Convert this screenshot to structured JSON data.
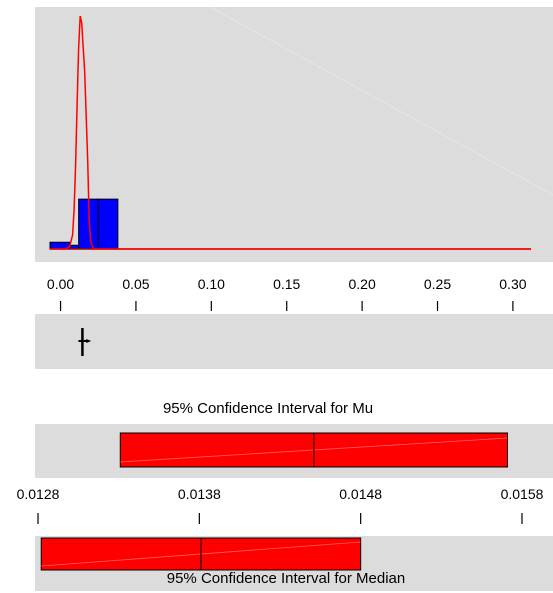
{
  "colors": {
    "panel_bg": "#dcdcdc",
    "histogram_fill": "#0000ff",
    "density_line": "#ff0000",
    "interval_fill": "#ff0000",
    "outline": "#000000"
  },
  "chart_data": [
    {
      "type": "bar",
      "subtype": "histogram with density curve",
      "x_ticks": [
        "0.00",
        "0.05",
        "0.10",
        "0.15",
        "0.20",
        "0.25",
        "0.30"
      ],
      "x_tick_values": [
        0.0,
        0.05,
        0.1,
        0.15,
        0.2,
        0.25,
        0.3
      ],
      "xlim": [
        -0.007,
        0.312
      ],
      "ylim": [
        0,
        1.0
      ],
      "bins": [
        {
          "x0": -0.007,
          "x1": 0.006,
          "value": 0.029
        },
        {
          "x0": 0.006,
          "x1": 0.012,
          "value": 0.016
        },
        {
          "x0": 0.012,
          "x1": 0.025,
          "value": 0.214
        },
        {
          "x0": 0.025,
          "x1": 0.038,
          "value": 0.214
        }
      ],
      "density_curve": {
        "x": [
          -0.007,
          0.003,
          0.006,
          0.008,
          0.009,
          0.01,
          0.011,
          0.012,
          0.013,
          0.014,
          0.016,
          0.018,
          0.019,
          0.02,
          0.022,
          0.03,
          0.312
        ],
        "y": [
          0.0,
          0.0,
          0.01,
          0.06,
          0.17,
          0.36,
          0.62,
          0.86,
          1.0,
          0.97,
          0.76,
          0.38,
          0.12,
          0.03,
          0.0,
          0.0,
          0.0
        ]
      }
    },
    {
      "type": "boxplot",
      "xlim": [
        -0.007,
        0.312
      ],
      "whisker_low": 0.0145,
      "whisker_high": 0.0145,
      "q1": 0.0145,
      "q3": 0.0145,
      "median": 0.0145,
      "outliers": [
        0.019
      ]
    },
    {
      "type": "interval",
      "title": "95% Confidence Interval for Mu",
      "x_ticks": [
        "0.0128",
        "0.0138",
        "0.0148",
        "0.0158"
      ],
      "x_tick_values": [
        0.0128,
        0.0138,
        0.0148,
        0.0158
      ],
      "xlim": [
        0.01262,
        0.01587
      ],
      "lower": 0.01331,
      "estimate": 0.01451,
      "upper": 0.01571
    },
    {
      "type": "interval",
      "title": "95% Confidence Interval for Median",
      "xlim": [
        0.01262,
        0.01587
      ],
      "lower": 0.01282,
      "estimate": 0.01381,
      "upper": 0.0148
    }
  ]
}
